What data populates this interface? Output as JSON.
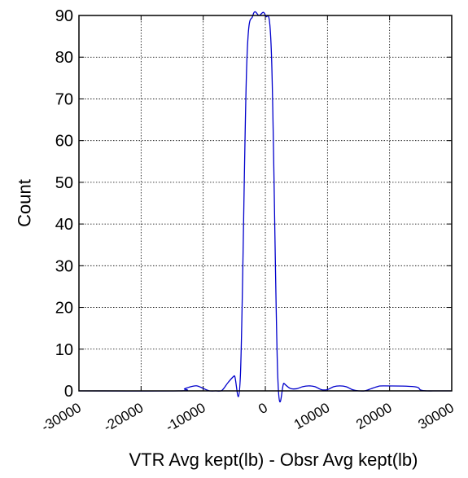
{
  "chart_data": {
    "type": "line",
    "title": "",
    "xlabel": "VTR Avg kept(lb) - Obsr Avg kept(lb)",
    "ylabel": "Count",
    "xlim": [
      -30000,
      30000
    ],
    "ylim": [
      0,
      90
    ],
    "xticks": [
      "-30000",
      "-20000",
      "-10000",
      "0",
      "10000",
      "20000",
      "30000"
    ],
    "yticks": [
      "0",
      "10",
      "20",
      "30",
      "40",
      "50",
      "60",
      "70",
      "80",
      "90"
    ],
    "xtick_values": [
      -30000,
      -20000,
      -10000,
      0,
      10000,
      20000,
      30000
    ],
    "ytick_values": [
      0,
      10,
      20,
      30,
      40,
      50,
      60,
      70,
      80,
      90
    ],
    "grid": true,
    "series": [
      {
        "name": "",
        "color": "#0000cc",
        "x": [
          -30000,
          -14000,
          -13000,
          -12000,
          -11000,
          -10000,
          -9000,
          -8000,
          -7000,
          -6000,
          -5000,
          -4000,
          -3000,
          -2000,
          -1000,
          0,
          1000,
          2000,
          3000,
          4000,
          5000,
          6000,
          7000,
          8000,
          9000,
          10000,
          11000,
          12000,
          13000,
          14000,
          15000,
          16000,
          17000,
          18000,
          19000,
          24000,
          25000,
          26000,
          27000,
          28000,
          29000,
          30000
        ],
        "y": [
          0,
          0,
          0.5,
          1.0,
          1.2,
          0.6,
          0,
          0,
          0.1,
          2.0,
          3.6,
          4.2,
          78,
          90,
          90,
          90,
          80,
          3.5,
          1.8,
          0.6,
          0.5,
          1.0,
          1.2,
          1.0,
          0.3,
          0.3,
          1.0,
          1.2,
          1.0,
          0.3,
          0,
          0,
          0.5,
          1.0,
          1.2,
          1.0,
          0.2,
          0,
          0,
          0,
          0,
          0
        ]
      }
    ]
  }
}
